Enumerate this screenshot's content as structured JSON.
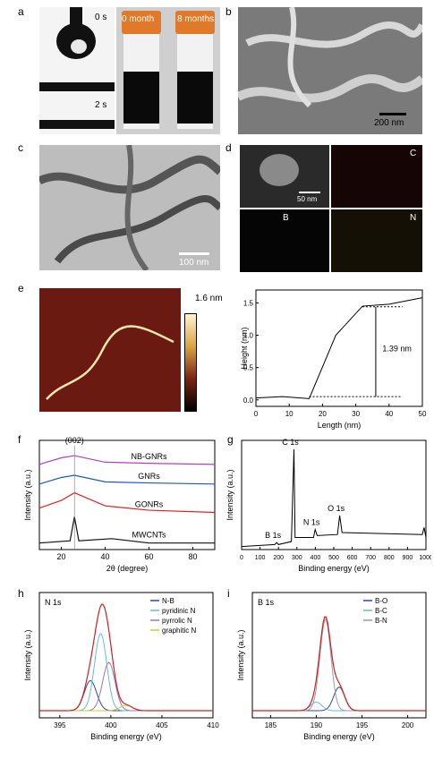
{
  "panel_labels": {
    "a": "a",
    "b": "b",
    "c": "c",
    "d": "d",
    "e": "e",
    "f": "f",
    "g": "g",
    "h": "h",
    "i": "i"
  },
  "panel_a": {
    "time_top": "0 s",
    "time_bottom": "2 s",
    "vial_left": "0 month",
    "vial_right": "8 months"
  },
  "panel_b": {
    "scale": "200 nm"
  },
  "panel_c": {
    "scale": "100 nm"
  },
  "panel_d": {
    "scale": "50 nm",
    "map_c": "C",
    "map_b": "B",
    "map_n": "N"
  },
  "panel_e_afm": {
    "colorbar_max": "1.6 nm"
  },
  "chart_data": [
    {
      "id": "e",
      "type": "line",
      "xlabel": "Length (nm)",
      "ylabel": "Height (nm)",
      "xlim": [
        0,
        50
      ],
      "ylim": [
        -0.1,
        1.7
      ],
      "xticks": [
        "0",
        "10",
        "20",
        "30",
        "40",
        "50"
      ],
      "yticks": [
        "0.0",
        "0.5",
        "1.0",
        "1.5"
      ],
      "x": [
        0,
        8,
        16,
        24,
        32,
        40,
        50
      ],
      "y": [
        0.03,
        0.05,
        0.02,
        1.0,
        1.45,
        1.48,
        1.58
      ],
      "annotation": "1.39 nm"
    },
    {
      "id": "f",
      "type": "line",
      "xlabel": "2θ (degree)",
      "ylabel": "Intensity (a.u.)",
      "xlim": [
        10,
        90
      ],
      "xticks": [
        "20",
        "40",
        "60",
        "80"
      ],
      "peak_label": "(002)",
      "series": [
        {
          "name": "NB-GNRs",
          "color": "#b040c0",
          "x": [
            10,
            20,
            26,
            40,
            60,
            90
          ],
          "y": [
            0.78,
            0.84,
            0.86,
            0.8,
            0.79,
            0.78
          ]
        },
        {
          "name": "GNRs",
          "color": "#2255bb",
          "x": [
            10,
            20,
            26,
            40,
            60,
            90
          ],
          "y": [
            0.6,
            0.66,
            0.68,
            0.62,
            0.61,
            0.6
          ]
        },
        {
          "name": "GONRs",
          "color": "#dd2222",
          "x": [
            10,
            20,
            26,
            40,
            60,
            90
          ],
          "y": [
            0.38,
            0.45,
            0.52,
            0.4,
            0.36,
            0.34
          ]
        },
        {
          "name": "MWCNTs",
          "color": "#111111",
          "x": [
            10,
            24,
            26,
            28,
            43,
            60,
            90
          ],
          "y": [
            0.06,
            0.08,
            0.3,
            0.08,
            0.1,
            0.06,
            0.06
          ]
        }
      ]
    },
    {
      "id": "g",
      "type": "line",
      "xlabel": "Binding energy (eV)",
      "ylabel": "Intensity (a.u.)",
      "xlim": [
        0,
        1000
      ],
      "xticks": [
        "0",
        "100",
        "200",
        "300",
        "400",
        "500",
        "600",
        "700",
        "800",
        "900",
        "1000"
      ],
      "peaks": [
        {
          "label": "B 1s",
          "x": 190
        },
        {
          "label": "C 1s",
          "x": 284
        },
        {
          "label": "N 1s",
          "x": 399
        },
        {
          "label": "O 1s",
          "x": 532
        }
      ],
      "x": [
        0,
        180,
        190,
        200,
        270,
        284,
        290,
        390,
        399,
        410,
        520,
        532,
        545,
        980,
        990,
        1000
      ],
      "y": [
        0.03,
        0.05,
        0.07,
        0.05,
        0.08,
        1.0,
        0.12,
        0.12,
        0.2,
        0.14,
        0.15,
        0.34,
        0.17,
        0.15,
        0.22,
        0.12
      ]
    },
    {
      "id": "h",
      "type": "line",
      "title": "N 1s",
      "xlabel": "Binding energy (eV)",
      "ylabel": "Intensity (a.u.)",
      "xlim": [
        393,
        410
      ],
      "xticks": [
        "395",
        "400",
        "405",
        "410"
      ],
      "series": [
        {
          "name": "N-B",
          "color": "#3344aa",
          "center": 398.0,
          "height": 0.28
        },
        {
          "name": "pyridinic N",
          "color": "#66bbdd",
          "center": 399.0,
          "height": 0.72
        },
        {
          "name": "pyrrolic N",
          "color": "#9977bb",
          "center": 399.8,
          "height": 0.45
        },
        {
          "name": "graphitic N",
          "color": "#cccc33",
          "center": 401.5,
          "height": 0.05
        }
      ]
    },
    {
      "id": "i",
      "type": "line",
      "title": "B 1s",
      "xlabel": "Binding energy (eV)",
      "ylabel": "Intensity (a.u.)",
      "xlim": [
        183,
        202
      ],
      "xticks": [
        "185",
        "190",
        "195",
        "200"
      ],
      "series": [
        {
          "name": "B-O",
          "color": "#3344aa",
          "center": 192.5,
          "height": 0.22
        },
        {
          "name": "B-C",
          "color": "#66bbdd",
          "center": 190.0,
          "height": 0.08
        },
        {
          "name": "B-N",
          "color": "#9999aa",
          "center": 191.0,
          "height": 0.85
        }
      ]
    }
  ]
}
